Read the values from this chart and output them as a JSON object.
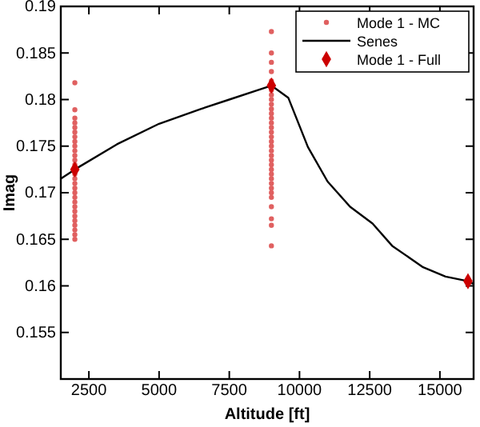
{
  "chart_data": {
    "type": "line",
    "xlabel": "Altitude [ft]",
    "ylabel": "Imag",
    "xlim": [
      1500,
      16200
    ],
    "xticks": [
      2500,
      5000,
      7500,
      10000,
      12500,
      15000
    ],
    "ylim": [
      0.15,
      0.19
    ],
    "yticks": [
      {
        "value": 0.155,
        "label": "0.155"
      },
      {
        "value": 0.16,
        "label": "0.16"
      },
      {
        "value": 0.165,
        "label": "0.165"
      },
      {
        "value": 0.17,
        "label": "0.17"
      },
      {
        "value": 0.175,
        "label": "0.175"
      },
      {
        "value": 0.18,
        "label": "0.18"
      },
      {
        "value": 0.185,
        "label": "0.185"
      },
      {
        "value": 0.19,
        "label": "0.19"
      }
    ],
    "grid": false,
    "legend": "top right",
    "series": [
      {
        "name": "Mode 1 - MC",
        "type": "scatter",
        "marker": "circle",
        "color": "#e06060",
        "x": [
          2000,
          2000,
          2000,
          2000,
          2000,
          2000,
          2000,
          2000,
          2000,
          2000,
          2000,
          2000,
          2000,
          2000,
          2000,
          2000,
          2000,
          2000,
          2000,
          2000,
          2000,
          2000,
          2000,
          2000,
          2000,
          2000,
          2000,
          2000,
          9000,
          9000,
          9000,
          9000,
          9000,
          9000,
          9000,
          9000,
          9000,
          9000,
          9000,
          9000,
          9000,
          9000,
          9000,
          9000,
          9000,
          9000,
          9000,
          9000,
          9000,
          9000,
          9000,
          9000,
          9000,
          9000,
          9000,
          9000,
          9000,
          9000,
          9000,
          9000,
          9000
        ],
        "values": [
          0.165,
          0.1655,
          0.166,
          0.1665,
          0.167,
          0.1675,
          0.168,
          0.1685,
          0.169,
          0.1695,
          0.17,
          0.1705,
          0.171,
          0.1715,
          0.172,
          0.173,
          0.1735,
          0.174,
          0.1745,
          0.175,
          0.1755,
          0.176,
          0.1765,
          0.177,
          0.1775,
          0.178,
          0.1789,
          0.1818,
          0.1643,
          0.1665,
          0.1672,
          0.1685,
          0.1695,
          0.17,
          0.1705,
          0.171,
          0.1715,
          0.172,
          0.1725,
          0.173,
          0.1735,
          0.174,
          0.1745,
          0.175,
          0.1755,
          0.176,
          0.1765,
          0.177,
          0.1775,
          0.178,
          0.1785,
          0.179,
          0.1795,
          0.18,
          0.1805,
          0.181,
          0.182,
          0.183,
          0.184,
          0.185,
          0.1873
        ]
      },
      {
        "name": "Senes",
        "marker": "none",
        "line_style": "solid",
        "color": "#000000",
        "x": [
          1500,
          2000,
          3500,
          5000,
          6500,
          7500,
          8500,
          9000,
          9600,
          10300,
          11000,
          11800,
          12600,
          13300,
          14400,
          15200,
          16000,
          16200
        ],
        "values": [
          0.1715,
          0.1725,
          0.1752,
          0.1774,
          0.179,
          0.18,
          0.181,
          0.1815,
          0.1802,
          0.1749,
          0.1712,
          0.1685,
          0.1667,
          0.1643,
          0.162,
          0.161,
          0.1605,
          0.1602
        ]
      },
      {
        "name": "Mode 1 - Full",
        "type": "scatter",
        "marker": "diamond",
        "color": "#cc0000",
        "x": [
          2000,
          9000,
          16000
        ],
        "values": [
          0.1725,
          0.1815,
          0.1605
        ]
      }
    ]
  }
}
